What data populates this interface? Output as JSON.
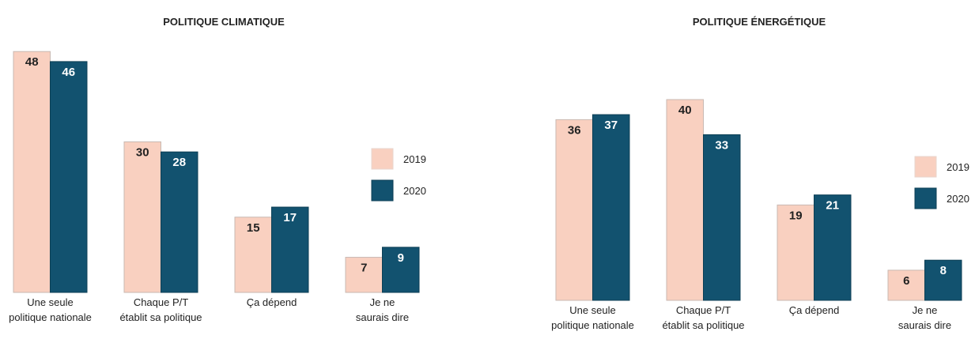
{
  "chart_data": [
    {
      "type": "bar",
      "title": "POLITIQUE CLIMATIQUE",
      "categories": [
        "Une seule\npolitique nationale",
        "Chaque P/T\nétablit sa politique",
        "Ça dépend",
        "Je ne\nsaurais dire"
      ],
      "series": [
        {
          "name": "2019",
          "color": "#f9d0c0",
          "values": [
            48,
            30,
            15,
            7
          ]
        },
        {
          "name": "2020",
          "color": "#12526f",
          "values": [
            46,
            28,
            17,
            9
          ]
        }
      ]
    },
    {
      "type": "bar",
      "title": "POLITIQUE ÉNERGÉTIQUE",
      "categories": [
        "Une seule\npolitique nationale",
        "Chaque P/T\nétablit sa politique",
        "Ça dépend",
        "Je ne\nsaurais dire"
      ],
      "series": [
        {
          "name": "2019",
          "color": "#f9d0c0",
          "values": [
            36,
            40,
            19,
            6
          ]
        },
        {
          "name": "2020",
          "color": "#12526f",
          "values": [
            37,
            33,
            21,
            8
          ]
        }
      ]
    }
  ]
}
